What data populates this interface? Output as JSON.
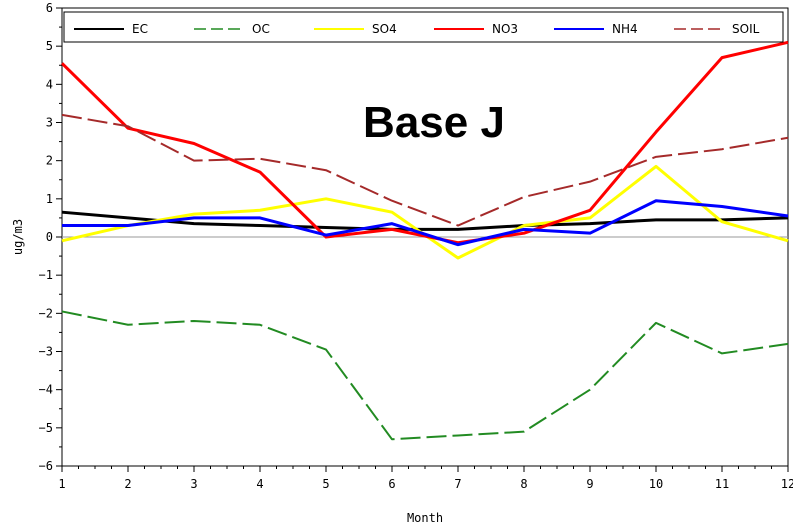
{
  "chart_data": {
    "type": "line",
    "annotation": "Base J",
    "xlabel": "Month",
    "ylabel": "ug/m3",
    "xlim": [
      1,
      12
    ],
    "ylim": [
      -6,
      6
    ],
    "x_ticks": [
      "1",
      "2",
      "3",
      "4",
      "5",
      "6",
      "7",
      "8",
      "9",
      "10",
      "11",
      "12"
    ],
    "y_ticks": [
      "-6",
      "-5",
      "-4",
      "-3",
      "-2",
      "-1",
      "0",
      "1",
      "2",
      "3",
      "4",
      "5",
      "6"
    ],
    "reference_line": 0,
    "legend_placement": "top",
    "x": [
      1,
      2,
      3,
      4,
      5,
      6,
      7,
      8,
      9,
      10,
      11,
      12
    ],
    "series": [
      {
        "name": "EC",
        "color": "#000000",
        "dash": "solid",
        "width": 3,
        "values": [
          0.65,
          0.5,
          0.35,
          0.3,
          0.25,
          0.2,
          0.2,
          0.3,
          0.35,
          0.45,
          0.45,
          0.5
        ]
      },
      {
        "name": "OC",
        "color": "#228B22",
        "dash": "dashed",
        "width": 2,
        "values": [
          -1.95,
          -2.3,
          -2.2,
          -2.3,
          -2.95,
          -5.3,
          -5.2,
          -5.1,
          -4.0,
          -2.25,
          -3.05,
          -2.8
        ]
      },
      {
        "name": "SO4",
        "color": "#FFFF00",
        "dash": "solid",
        "width": 3,
        "values": [
          -0.1,
          0.3,
          0.6,
          0.7,
          1.0,
          0.65,
          -0.55,
          0.3,
          0.5,
          1.85,
          0.4,
          -0.1
        ]
      },
      {
        "name": "NO3",
        "color": "#FF0000",
        "dash": "solid",
        "width": 3,
        "values": [
          4.55,
          2.85,
          2.45,
          1.7,
          0.0,
          0.2,
          -0.15,
          0.1,
          0.7,
          2.75,
          4.7,
          5.1
        ]
      },
      {
        "name": "NH4",
        "color": "#0000FF",
        "dash": "solid",
        "width": 3,
        "values": [
          0.3,
          0.3,
          0.5,
          0.5,
          0.05,
          0.35,
          -0.2,
          0.2,
          0.1,
          0.95,
          0.8,
          0.55
        ]
      },
      {
        "name": "SOIL",
        "color": "#A52A2A",
        "dash": "dashed",
        "width": 2,
        "values": [
          3.2,
          2.9,
          2.0,
          2.05,
          1.75,
          0.95,
          0.3,
          1.05,
          1.45,
          2.1,
          2.3,
          2.6
        ]
      }
    ]
  }
}
